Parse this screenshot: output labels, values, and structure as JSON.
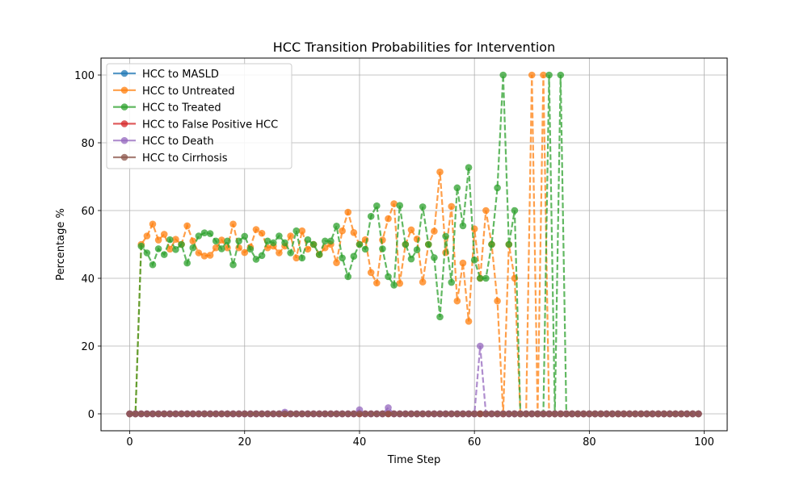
{
  "chart_data": {
    "type": "line",
    "title": "HCC Transition Probabilities for Intervention",
    "xlabel": "Time Step",
    "ylabel": "Percentage %",
    "xlim": [
      -5,
      104
    ],
    "ylim": [
      -5,
      105
    ],
    "xticks": [
      0,
      20,
      40,
      60,
      80,
      100
    ],
    "yticks": [
      0,
      20,
      40,
      60,
      80,
      100
    ],
    "grid": true,
    "legend_position": "top-left",
    "x_start": 0,
    "x_end": 99,
    "series": [
      {
        "name": "HCC to MASLD",
        "color": "#1f77b4",
        "style": "dashed",
        "values": [
          0,
          0,
          0,
          0,
          0,
          0,
          0,
          0,
          0,
          0,
          0,
          0,
          0,
          0,
          0,
          0,
          0,
          0,
          0,
          0,
          0,
          0,
          0,
          0,
          0,
          0,
          0,
          0,
          0,
          0,
          0,
          0,
          0,
          0,
          0,
          0,
          0,
          0,
          0,
          0,
          0,
          0,
          0,
          0,
          0,
          0,
          0,
          0,
          0,
          0,
          0,
          0,
          0,
          0,
          0,
          0,
          0,
          0,
          0,
          0,
          0,
          0,
          0,
          0,
          0,
          0,
          0,
          0,
          0,
          0,
          0,
          0,
          0,
          0,
          0,
          0,
          0,
          0,
          0,
          0,
          0,
          0,
          0,
          0,
          0,
          0,
          0,
          0,
          0,
          0,
          0,
          0,
          0,
          0,
          0,
          0,
          0,
          0,
          0,
          0
        ]
      },
      {
        "name": "HCC to Untreated",
        "color": "#ff7f0e",
        "style": "dashed",
        "values": [
          0,
          0,
          50,
          52.5,
          56,
          51.3,
          53,
          48.6,
          51.5,
          50,
          55.5,
          51,
          47.5,
          46.6,
          46.8,
          49,
          51.3,
          49,
          56,
          49,
          47.6,
          49.2,
          54.4,
          53.3,
          49,
          49.5,
          47.5,
          49.5,
          52.5,
          46,
          54,
          48.6,
          50,
          47,
          49,
          50,
          44.6,
          54,
          59.5,
          53.5,
          50,
          51.4,
          41.7,
          38.6,
          51.3,
          57.6,
          62,
          38.5,
          50,
          54.3,
          51.6,
          38.9,
          50,
          53.9,
          71.4,
          47.6,
          61.2,
          33.3,
          44.5,
          27.3,
          54.6,
          40,
          60,
          50,
          33.3,
          0,
          50,
          40,
          0,
          0,
          100,
          0,
          100,
          0,
          0,
          0,
          0,
          0,
          0,
          0,
          0,
          0,
          0,
          0,
          0,
          0,
          0,
          0,
          0,
          0,
          0,
          0,
          0,
          0,
          0,
          0,
          0,
          0,
          0,
          0
        ]
      },
      {
        "name": "HCC to Treated",
        "color": "#2ca02c",
        "style": "dashed",
        "values": [
          0,
          0,
          49.5,
          47.5,
          44,
          48.7,
          47,
          51.4,
          48.5,
          50,
          44.5,
          49,
          52.5,
          53.4,
          53.2,
          51,
          48.7,
          51,
          44,
          51,
          52.4,
          48.6,
          45.6,
          46.7,
          51,
          50.5,
          52.5,
          50.5,
          47.5,
          54,
          46,
          51.4,
          50,
          47,
          51,
          51,
          55.4,
          46,
          40.5,
          46.5,
          50,
          48.6,
          58.3,
          61.4,
          48.7,
          40.5,
          38,
          61.5,
          50,
          45.7,
          48.4,
          61.1,
          50,
          46.1,
          28.6,
          52.4,
          38.8,
          66.7,
          55.5,
          72.7,
          45.4,
          40,
          40,
          50,
          66.7,
          100,
          50,
          60,
          0,
          0,
          0,
          0,
          0,
          100,
          0,
          100,
          0,
          0,
          0,
          0,
          0,
          0,
          0,
          0,
          0,
          0,
          0,
          0,
          0,
          0,
          0,
          0,
          0,
          0,
          0,
          0,
          0,
          0,
          0,
          0
        ]
      },
      {
        "name": "HCC to False Positive HCC",
        "color": "#d62728",
        "style": "dashed",
        "values": [
          0,
          0,
          0,
          0,
          0,
          0,
          0,
          0,
          0,
          0,
          0,
          0,
          0,
          0,
          0,
          0,
          0,
          0,
          0,
          0,
          0,
          0,
          0,
          0,
          0,
          0,
          0,
          0,
          0,
          0,
          0,
          0,
          0,
          0,
          0,
          0,
          0,
          0,
          0,
          0,
          0,
          0,
          0,
          0,
          0,
          0,
          0,
          0,
          0,
          0,
          0,
          0,
          0,
          0,
          0,
          0,
          0,
          0,
          0,
          0,
          0,
          0,
          0,
          0,
          0,
          0,
          0,
          0,
          0,
          0,
          0,
          0,
          0,
          0,
          0,
          0,
          0,
          0,
          0,
          0,
          0,
          0,
          0,
          0,
          0,
          0,
          0,
          0,
          0,
          0,
          0,
          0,
          0,
          0,
          0,
          0,
          0,
          0,
          0,
          0
        ]
      },
      {
        "name": "HCC to Death",
        "color": "#9467bd",
        "style": "dashed",
        "values": [
          0,
          0,
          0,
          0,
          0,
          0,
          0,
          0,
          0,
          0,
          0,
          0,
          0,
          0,
          0,
          0,
          0,
          0,
          0,
          0,
          0,
          0,
          0,
          0,
          0,
          0,
          0,
          0.5,
          0,
          0,
          0,
          0,
          0,
          0,
          0,
          0,
          0,
          0,
          0,
          0,
          1.2,
          0,
          0,
          0,
          0,
          1.8,
          0,
          0,
          0,
          0,
          0,
          0,
          0,
          0,
          0,
          0,
          0,
          0,
          0,
          0,
          0,
          20,
          0,
          0,
          0,
          0,
          0,
          0,
          0,
          0,
          0,
          0,
          0,
          0,
          0,
          0,
          0,
          0,
          0,
          0,
          0,
          0,
          0,
          0,
          0,
          0,
          0,
          0,
          0,
          0,
          0,
          0,
          0,
          0,
          0,
          0,
          0,
          0,
          0,
          0
        ]
      },
      {
        "name": "HCC to Cirrhosis",
        "color": "#8c564b",
        "style": "dashed",
        "values": [
          0,
          0,
          0,
          0,
          0,
          0,
          0,
          0,
          0,
          0,
          0,
          0,
          0,
          0,
          0,
          0,
          0,
          0,
          0,
          0,
          0,
          0,
          0,
          0,
          0,
          0,
          0,
          0,
          0,
          0,
          0,
          0,
          0,
          0,
          0,
          0,
          0,
          0,
          0,
          0,
          0,
          0,
          0,
          0,
          0,
          0,
          0,
          0,
          0,
          0,
          0,
          0,
          0,
          0,
          0,
          0,
          0,
          0,
          0,
          0,
          0,
          0,
          0,
          0,
          0,
          0,
          0,
          0,
          0,
          0,
          0,
          0,
          0,
          0,
          0,
          0,
          0,
          0,
          0,
          0,
          0,
          0,
          0,
          0,
          0,
          0,
          0,
          0,
          0,
          0,
          0,
          0,
          0,
          0,
          0,
          0,
          0,
          0,
          0,
          0
        ]
      }
    ]
  }
}
